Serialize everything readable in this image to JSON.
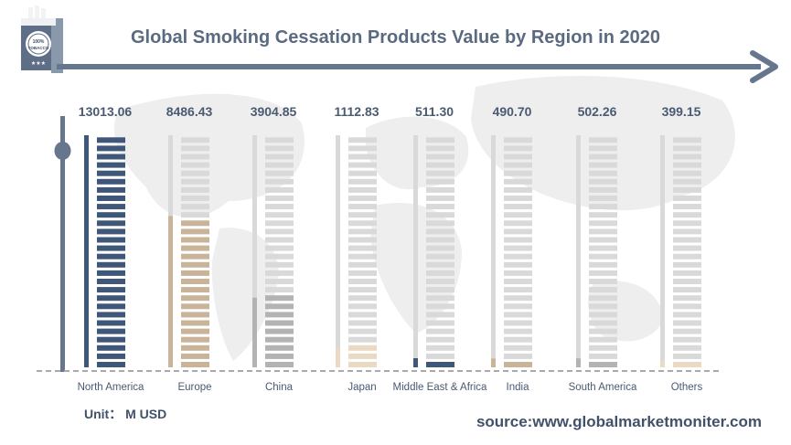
{
  "header": {
    "title": "Global Smoking Cessation Products Value by Region in 2020",
    "logo_text": [
      "100%",
      "TOBACCO"
    ]
  },
  "footer": {
    "unit": "Unit： M USD",
    "source": "source:www.globalmarketmoniter.com"
  },
  "colors": {
    "title": "#5a6a80",
    "arrow": "#66768d",
    "track": "#d9d9d9",
    "map": "#eeeeee"
  },
  "chart_data": {
    "type": "bar",
    "title": "Global Smoking Cessation Products Value by Region in 2020",
    "unit": "M USD",
    "categories": [
      "North America",
      "Europe",
      "China",
      "Japan",
      "Middle East & Africa",
      "India",
      "South America",
      "Others"
    ],
    "values": [
      13013.06,
      8486.43,
      3904.85,
      1112.83,
      511.3,
      490.7,
      502.26,
      399.15
    ],
    "value_labels": [
      "13013.06",
      "8486.43",
      "3904.85",
      "1112.83",
      "511.30",
      "490.70",
      "502.26",
      "399.15"
    ],
    "bar_colors": [
      "#3f5778",
      "#c9b49a",
      "#b3b3b3",
      "#ead9c3",
      "#3f5778",
      "#c9b49a",
      "#b3b3b3",
      "#ead9c3"
    ],
    "ylim": [
      0,
      13013.06
    ],
    "grid": false,
    "legend": "none"
  }
}
